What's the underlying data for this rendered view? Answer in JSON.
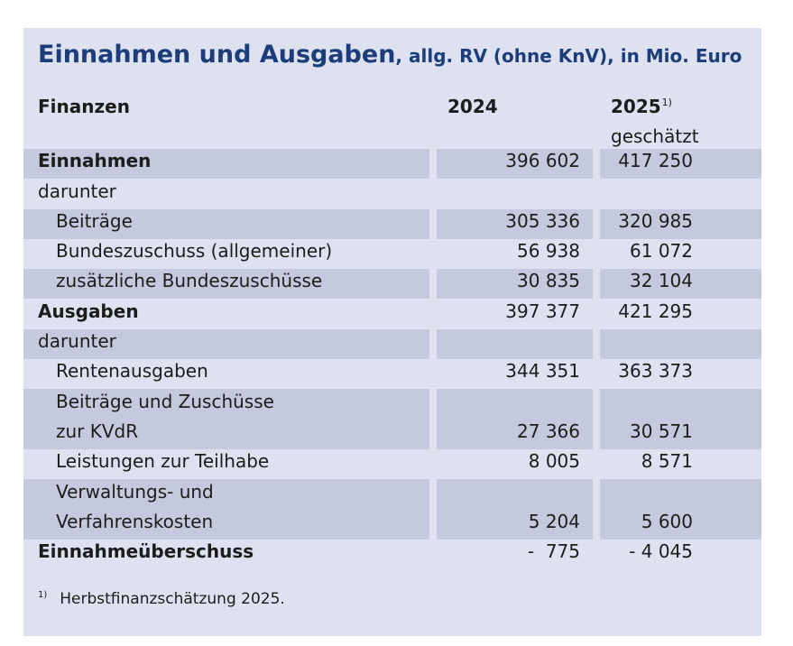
{
  "title": {
    "main": "Einnahmen und Ausgaben",
    "sub": ", allg. RV (ohne KnV), in Mio. Euro"
  },
  "columns": {
    "label": "Finanzen",
    "year1": "2024",
    "year2": "2025",
    "year2_sup": "1)",
    "year2_note": "geschätzt"
  },
  "rows": [
    {
      "label": "Einnahmen",
      "v2024": "396 602",
      "v2025": "417 250",
      "bold": true,
      "indent": false,
      "shaded": true
    },
    {
      "label": "darunter",
      "v2024": "",
      "v2025": "",
      "bold": false,
      "indent": false,
      "shaded": false
    },
    {
      "label": "Beiträge",
      "v2024": "305 336",
      "v2025": "320 985",
      "bold": false,
      "indent": true,
      "shaded": true
    },
    {
      "label": "Bundeszuschuss (allgemeiner)",
      "v2024": "56 938",
      "v2025": "61 072",
      "bold": false,
      "indent": true,
      "shaded": false
    },
    {
      "label": "zusätzliche Bundeszuschüsse",
      "v2024": "30 835",
      "v2025": "32 104",
      "bold": false,
      "indent": true,
      "shaded": true
    },
    {
      "label": "Ausgaben",
      "v2024": "397 377",
      "v2025": "421 295",
      "bold": true,
      "indent": false,
      "shaded": false
    },
    {
      "label": "darunter",
      "v2024": "",
      "v2025": "",
      "bold": false,
      "indent": false,
      "shaded": true
    },
    {
      "label": "Rentenausgaben",
      "v2024": "344 351",
      "v2025": "363 373",
      "bold": false,
      "indent": true,
      "shaded": false
    },
    {
      "label": "Beiträge und Zuschüsse",
      "label2": "zur KVdR",
      "v2024": "27 366",
      "v2025": "30 571",
      "bold": false,
      "indent": true,
      "shaded": true
    },
    {
      "label": "Leistungen zur Teilhabe",
      "v2024": "8 005",
      "v2025": "8 571",
      "bold": false,
      "indent": true,
      "shaded": false
    },
    {
      "label": "Verwaltungs- und",
      "label2": "Verfahrenskosten",
      "v2024": "5 204",
      "v2025": "5 600",
      "bold": false,
      "indent": true,
      "shaded": true
    },
    {
      "label": "Einnahmeüberschuss",
      "v2024": "-  775",
      "v2025": "- 4 045",
      "bold": true,
      "indent": false,
      "shaded": false
    }
  ],
  "footnote": {
    "mark": "1)",
    "text": "Herbstfinanzschätzung 2025."
  },
  "colors": {
    "panel_background": "#dee1ef",
    "row_shade": "#c5c9dd",
    "title": "#1d3d7a"
  }
}
